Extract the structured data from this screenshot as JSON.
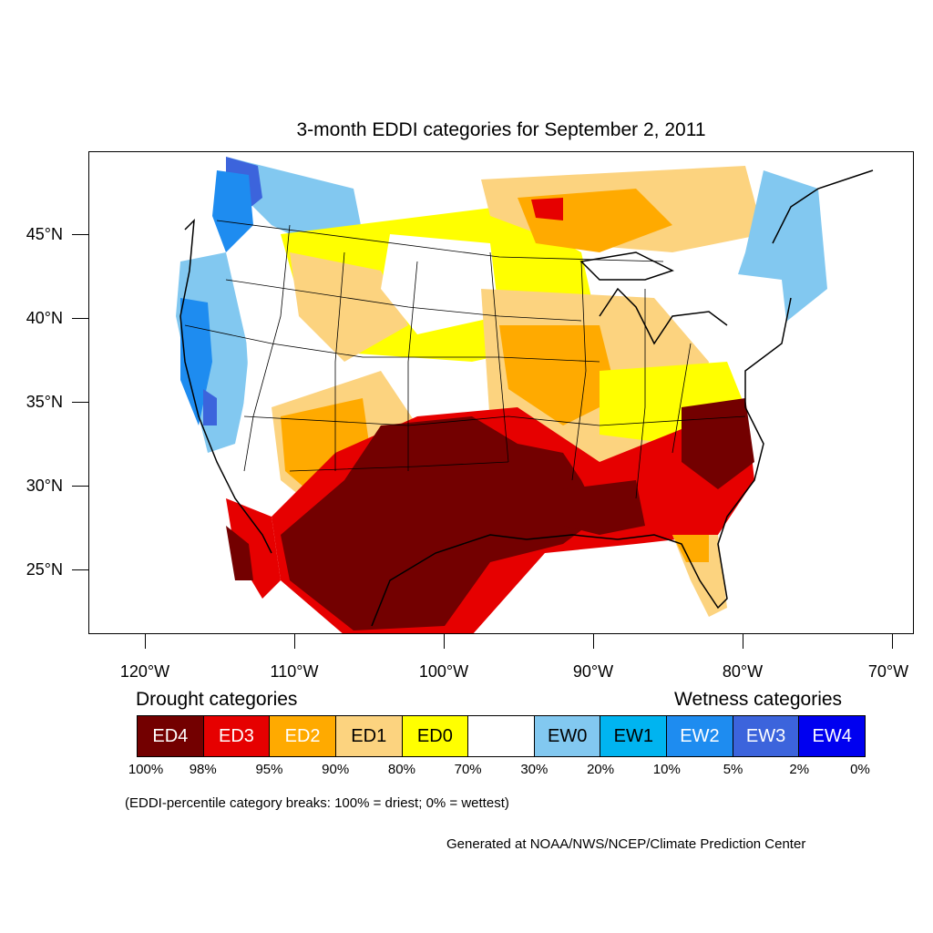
{
  "title": "3-month EDDI categories for September 2, 2011",
  "latitude_labels": [
    "45°N",
    "40°N",
    "35°N",
    "30°N",
    "25°N"
  ],
  "longitude_labels": [
    "120°W",
    "110°W",
    "100°W",
    "90°W",
    "80°W",
    "70°W"
  ],
  "legend": {
    "drought_heading": "Drought categories",
    "wetness_heading": "Wetness categories",
    "categories": [
      {
        "label": "ED4",
        "color": "#730000",
        "text_color": "#ffffff"
      },
      {
        "label": "ED3",
        "color": "#e60000",
        "text_color": "#ffffff"
      },
      {
        "label": "ED2",
        "color": "#ffaa00",
        "text_color": "#ffffff"
      },
      {
        "label": "ED1",
        "color": "#fcd37f",
        "text_color": "#000000"
      },
      {
        "label": "ED0",
        "color": "#ffff00",
        "text_color": "#000000"
      },
      {
        "label": "",
        "color": "#ffffff",
        "text_color": "#000000"
      },
      {
        "label": "EW0",
        "color": "#82c8f0",
        "text_color": "#000000"
      },
      {
        "label": "EW1",
        "color": "#00b4f0",
        "text_color": "#000000"
      },
      {
        "label": "EW2",
        "color": "#1e8cf0",
        "text_color": "#ffffff"
      },
      {
        "label": "EW3",
        "color": "#3c64dc",
        "text_color": "#ffffff"
      },
      {
        "label": "EW4",
        "color": "#0000f0",
        "text_color": "#ffffff"
      }
    ],
    "breaks": [
      "100%",
      "98%",
      "95%",
      "90%",
      "80%",
      "70%",
      "30%",
      "20%",
      "10%",
      "5%",
      "2%",
      "0%"
    ]
  },
  "note": "(EDDI-percentile category breaks: 100% = driest; 0% = wettest)",
  "credit": "Generated at NOAA/NWS/NCEP/Climate Prediction Center"
}
